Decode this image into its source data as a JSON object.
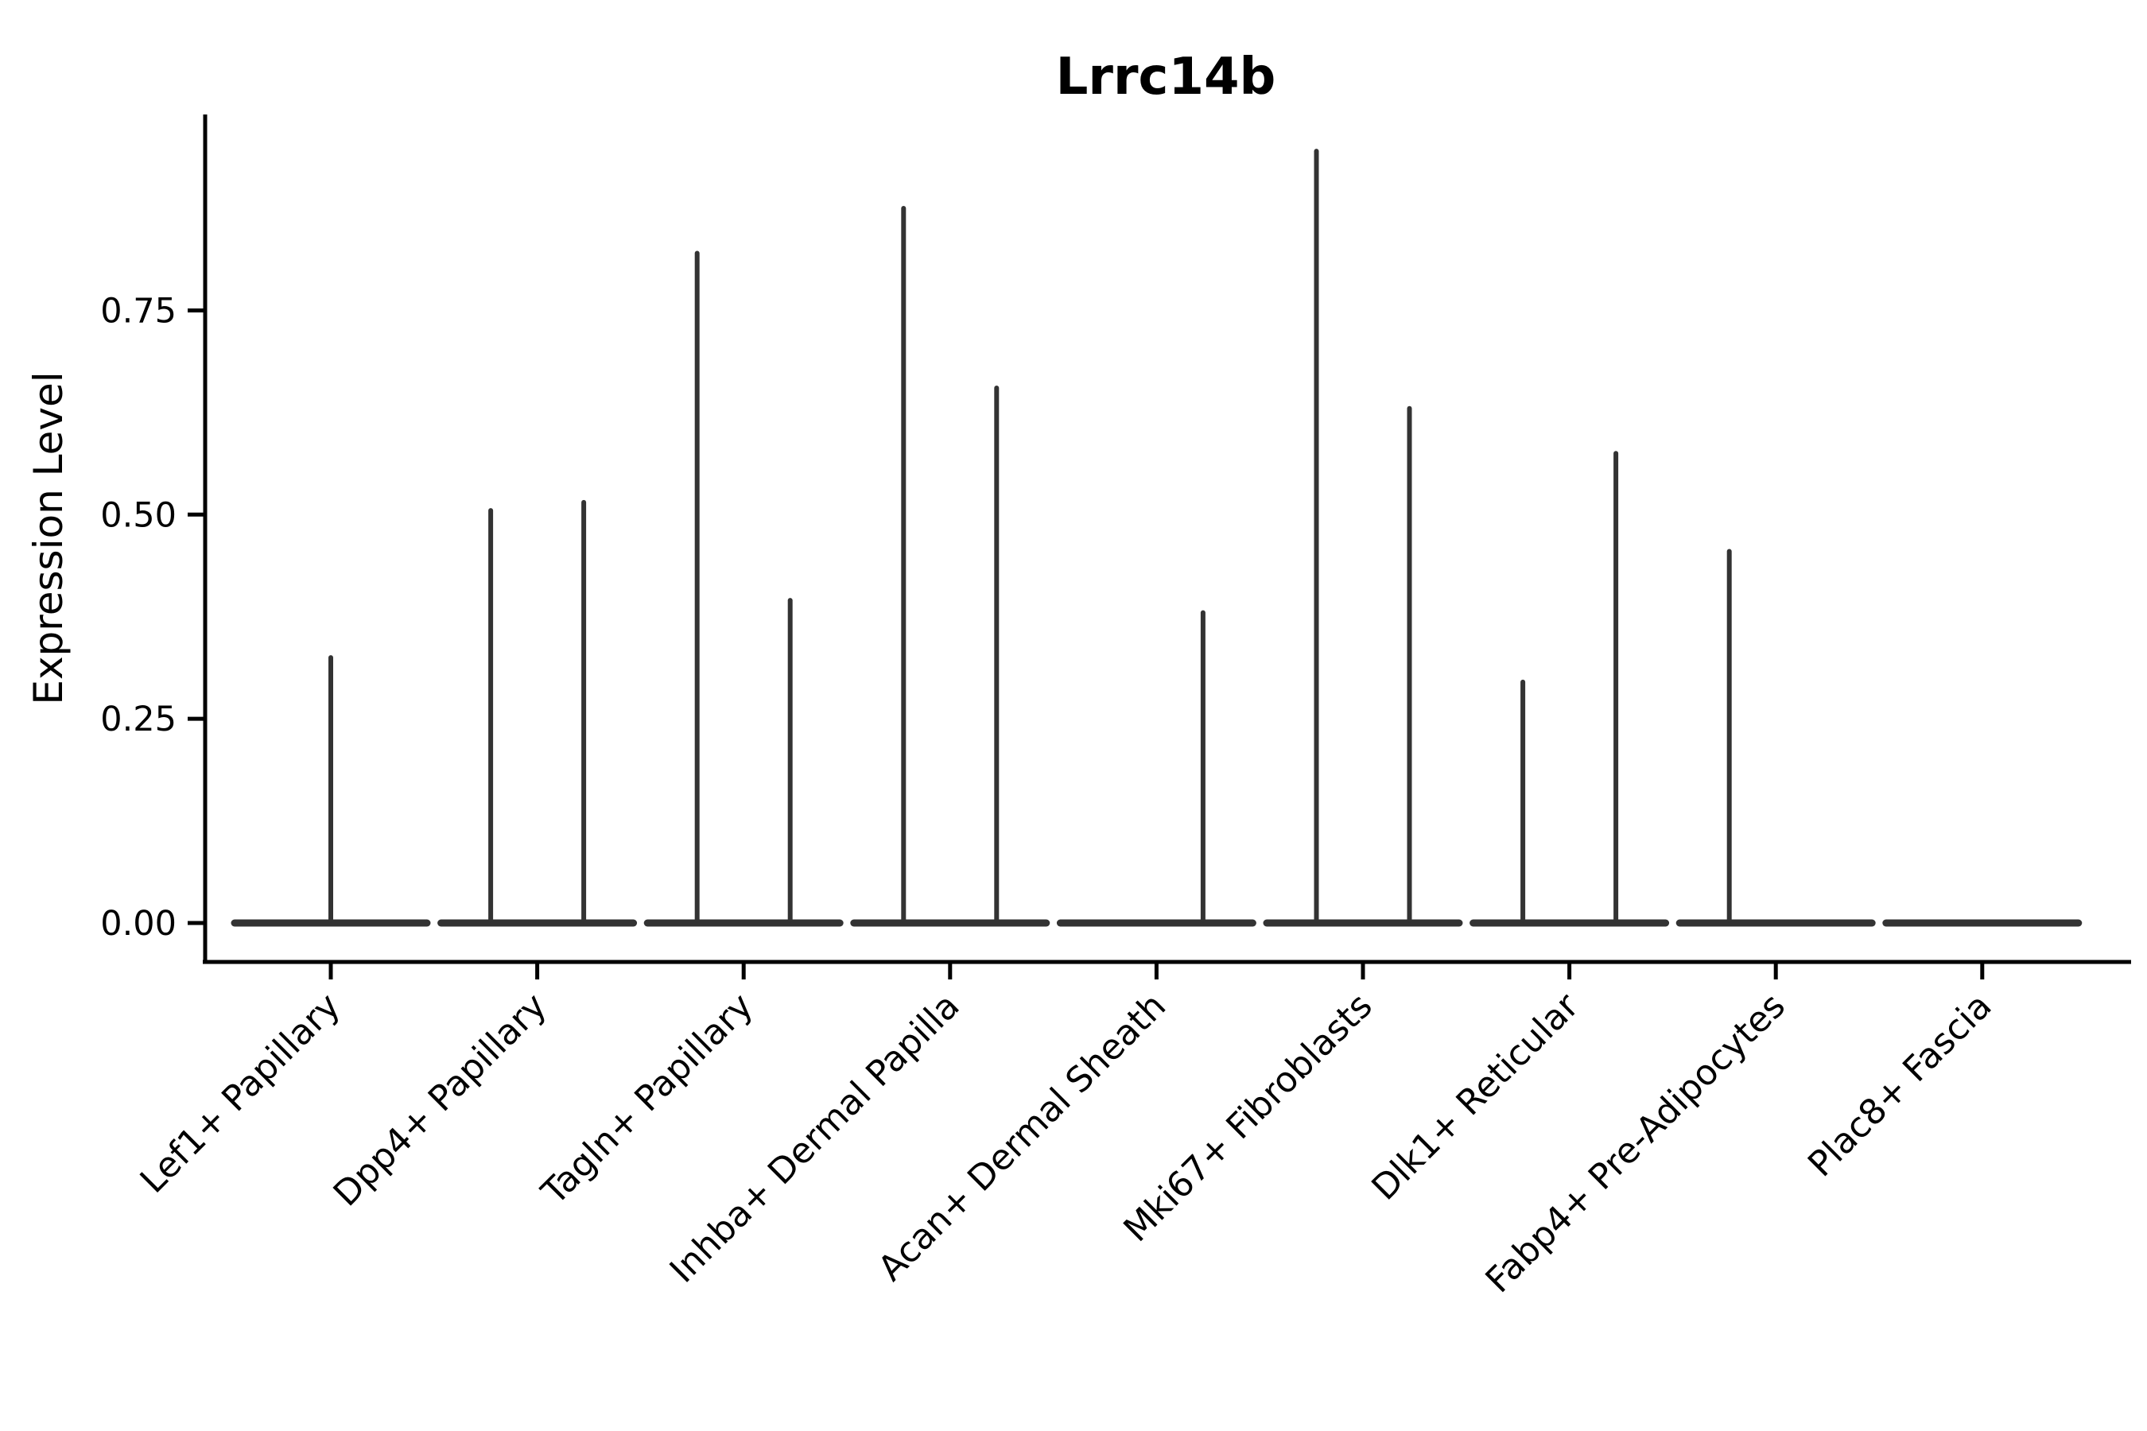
{
  "chart_data": {
    "type": "violin",
    "title": "Lrrc14b",
    "xlabel": "",
    "ylabel": "Expression Level",
    "y_tick_labels": [
      "0.00",
      "0.25",
      "0.50",
      "0.75"
    ],
    "y_tick_values": [
      0,
      0.25,
      0.5,
      0.75
    ],
    "ylim": [
      0,
      0.99
    ],
    "grid": false,
    "legend_position": "none",
    "categories": [
      "Lef1+ Papillary",
      "Dpp4+ Papillary",
      "Tagln+ Papillary",
      "Inhba+ Dermal Papilla",
      "Acan+ Dermal Sheath",
      "Mki67+ Fibroblasts",
      "Dlk1+ Reticular",
      "Fabp4+ Pre-Adipocytes",
      "Plac8+ Fascia"
    ],
    "violins": [
      {
        "category": "Lef1+ Papillary",
        "groups": [
          {
            "position": "center",
            "peak": 0.325
          }
        ]
      },
      {
        "category": "Dpp4+ Papillary",
        "groups": [
          {
            "position": "left",
            "peak": 0.505
          },
          {
            "position": "right",
            "peak": 0.515
          }
        ]
      },
      {
        "category": "Tagln+ Papillary",
        "groups": [
          {
            "position": "left",
            "peak": 0.82
          },
          {
            "position": "right",
            "peak": 0.395
          }
        ]
      },
      {
        "category": "Inhba+ Dermal Papilla",
        "groups": [
          {
            "position": "left",
            "peak": 0.875
          },
          {
            "position": "right",
            "peak": 0.655
          }
        ]
      },
      {
        "category": "Acan+ Dermal Sheath",
        "groups": [
          {
            "position": "left",
            "peak": 0
          },
          {
            "position": "right",
            "peak": 0.38
          }
        ]
      },
      {
        "category": "Mki67+ Fibroblasts",
        "groups": [
          {
            "position": "left",
            "peak": 0.945
          },
          {
            "position": "right",
            "peak": 0.63
          }
        ]
      },
      {
        "category": "Dlk1+ Reticular",
        "groups": [
          {
            "position": "left",
            "peak": 0.295
          },
          {
            "position": "right",
            "peak": 0.575
          }
        ]
      },
      {
        "category": "Fabp4+ Pre-Adipocytes",
        "groups": [
          {
            "position": "left",
            "peak": 0.455
          },
          {
            "position": "right",
            "peak": 0
          }
        ]
      },
      {
        "category": "Plac8+ Fascia",
        "groups": [
          {
            "position": "left",
            "peak": 0
          },
          {
            "position": "right",
            "peak": 0
          }
        ]
      }
    ],
    "colors": {
      "violin_stroke": "#333333",
      "axis": "#000000",
      "text": "#000000",
      "background": "#ffffff"
    }
  }
}
